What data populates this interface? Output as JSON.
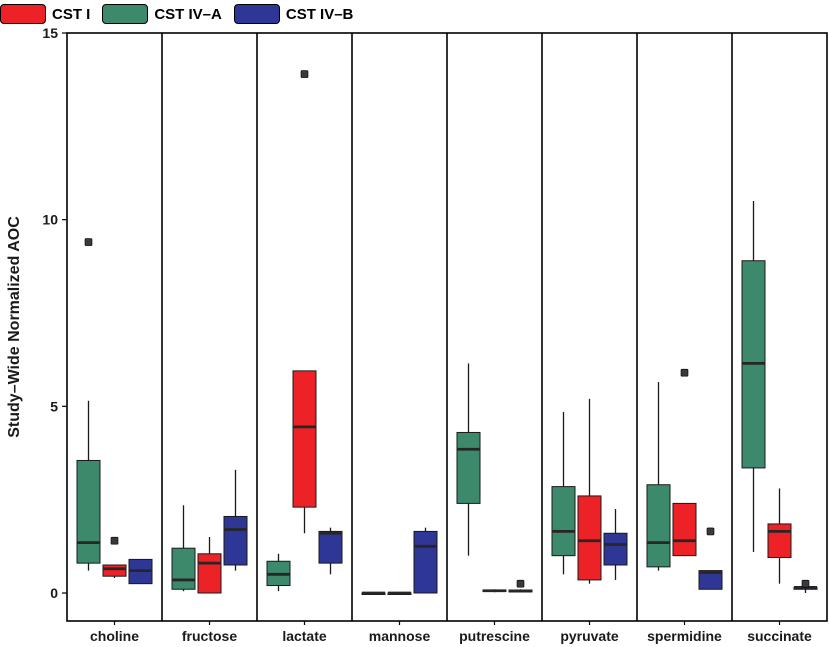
{
  "chart_data": {
    "type": "boxplot",
    "ylabel": "Study–Wide Normalized AOC",
    "xlabel": "",
    "ylim": [
      -0.75,
      15
    ],
    "yticks": [
      0,
      5,
      10,
      15
    ],
    "legend_position": "top-left",
    "series": [
      {
        "name": "CST I",
        "color": "#ec2226"
      },
      {
        "name": "CST IV–A",
        "color": "#3c8a6b"
      },
      {
        "name": "CST IV–B",
        "color": "#2e3796"
      }
    ],
    "facets": [
      {
        "name": "choline",
        "boxes": [
          {
            "group": "CST IV–A",
            "min": 0.6,
            "q1": 0.8,
            "median": 1.35,
            "q3": 3.55,
            "max": 5.15,
            "outliers": [
              9.4
            ]
          },
          {
            "group": "CST I",
            "min": 0.4,
            "q1": 0.45,
            "median": 0.65,
            "q3": 0.75,
            "max": 0.75,
            "outliers": [
              1.4
            ]
          },
          {
            "group": "CST IV–B",
            "min": 0.25,
            "q1": 0.25,
            "median": 0.6,
            "q3": 0.9,
            "max": 0.9,
            "outliers": []
          }
        ]
      },
      {
        "name": "fructose",
        "boxes": [
          {
            "group": "CST IV–A",
            "min": 0.05,
            "q1": 0.1,
            "median": 0.35,
            "q3": 1.2,
            "max": 2.35,
            "outliers": []
          },
          {
            "group": "CST I",
            "min": 0.0,
            "q1": 0.0,
            "median": 0.8,
            "q3": 1.05,
            "max": 1.5,
            "outliers": []
          },
          {
            "group": "CST IV–B",
            "min": 0.6,
            "q1": 0.75,
            "median": 1.7,
            "q3": 2.05,
            "max": 3.3,
            "outliers": []
          }
        ]
      },
      {
        "name": "lactate",
        "boxes": [
          {
            "group": "CST IV–A",
            "min": 0.05,
            "q1": 0.2,
            "median": 0.5,
            "q3": 0.85,
            "max": 1.05,
            "outliers": []
          },
          {
            "group": "CST I",
            "min": 1.6,
            "q1": 2.3,
            "median": 4.45,
            "q3": 5.95,
            "max": 5.95,
            "outliers": [
              13.9
            ]
          },
          {
            "group": "CST IV–B",
            "min": 0.5,
            "q1": 0.8,
            "median": 1.6,
            "q3": 1.65,
            "max": 1.75,
            "outliers": []
          }
        ]
      },
      {
        "name": "mannose",
        "boxes": [
          {
            "group": "CST IV–A",
            "min": 0.0,
            "q1": 0.0,
            "median": 0.0,
            "q3": 0.0,
            "max": 0.0,
            "outliers": []
          },
          {
            "group": "CST I",
            "min": 0.0,
            "q1": 0.0,
            "median": 0.0,
            "q3": 0.0,
            "max": 0.0,
            "outliers": []
          },
          {
            "group": "CST IV–B",
            "min": 0.0,
            "q1": 0.0,
            "median": 1.25,
            "q3": 1.65,
            "max": 1.75,
            "outliers": []
          }
        ]
      },
      {
        "name": "putrescine",
        "boxes": [
          {
            "group": "CST IV–A",
            "min": 1.0,
            "q1": 2.4,
            "median": 3.85,
            "q3": 4.3,
            "max": 6.15,
            "outliers": []
          },
          {
            "group": "CST I",
            "min": 0.02,
            "q1": 0.04,
            "median": 0.06,
            "q3": 0.08,
            "max": 0.1,
            "outliers": []
          },
          {
            "group": "CST IV–B",
            "min": 0.02,
            "q1": 0.03,
            "median": 0.05,
            "q3": 0.08,
            "max": 0.1,
            "outliers": [
              0.25
            ]
          }
        ]
      },
      {
        "name": "pyruvate",
        "boxes": [
          {
            "group": "CST IV–A",
            "min": 0.5,
            "q1": 1.0,
            "median": 1.65,
            "q3": 2.85,
            "max": 4.85,
            "outliers": []
          },
          {
            "group": "CST I",
            "min": 0.25,
            "q1": 0.35,
            "median": 1.4,
            "q3": 2.6,
            "max": 5.2,
            "outliers": []
          },
          {
            "group": "CST IV–B",
            "min": 0.35,
            "q1": 0.75,
            "median": 1.3,
            "q3": 1.6,
            "max": 2.25,
            "outliers": []
          }
        ]
      },
      {
        "name": "spermidine",
        "boxes": [
          {
            "group": "CST IV–A",
            "min": 0.6,
            "q1": 0.7,
            "median": 1.35,
            "q3": 2.9,
            "max": 5.65,
            "outliers": []
          },
          {
            "group": "CST I",
            "min": 1.0,
            "q1": 1.0,
            "median": 1.4,
            "q3": 2.4,
            "max": 2.4,
            "outliers": [
              5.9
            ]
          },
          {
            "group": "CST IV–B",
            "min": 0.1,
            "q1": 0.1,
            "median": 0.55,
            "q3": 0.6,
            "max": 0.6,
            "outliers": [
              1.65
            ]
          }
        ]
      },
      {
        "name": "succinate",
        "boxes": [
          {
            "group": "CST IV–A",
            "min": 1.1,
            "q1": 3.35,
            "median": 6.15,
            "q3": 8.9,
            "max": 10.5,
            "outliers": []
          },
          {
            "group": "CST I",
            "min": 0.25,
            "q1": 0.95,
            "median": 1.65,
            "q3": 1.85,
            "max": 2.8,
            "outliers": []
          },
          {
            "group": "CST IV–B",
            "min": 0.0,
            "q1": 0.1,
            "median": 0.15,
            "q3": 0.15,
            "max": 0.3,
            "outliers": [
              0.25
            ]
          }
        ]
      }
    ]
  }
}
